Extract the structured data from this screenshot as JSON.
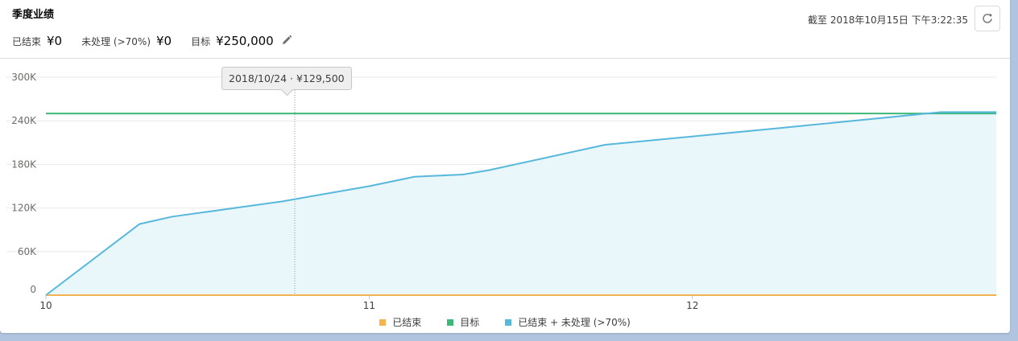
{
  "header": {
    "title": "季度业绩",
    "closed_label": "已结束",
    "closed_value": "¥0",
    "open_label": "未处理 (>70%)",
    "open_value": "¥0",
    "goal_label": "目标",
    "goal_value": "¥250,000",
    "asof": "截至 2018年10月15日 下午3:22:35",
    "edit_icon": "pencil-icon",
    "refresh_icon": "refresh-icon"
  },
  "tooltip": {
    "text": "2018/10/24 · ¥129,500"
  },
  "colors": {
    "closed": "#f4b350",
    "goal": "#3cb878",
    "closed_open": "#57b8dc",
    "area_fill": "#e9f6fa",
    "grid": "#e8e8e8",
    "axis_text": "#706e6b"
  },
  "chart_data": {
    "type": "line",
    "x_range": [
      10,
      12.94
    ],
    "ylim": [
      0,
      300000
    ],
    "y_ticks": [
      0,
      60000,
      120000,
      180000,
      240000,
      300000
    ],
    "y_tick_labels": [
      "0",
      "60K",
      "120K",
      "180K",
      "240K",
      "300K"
    ],
    "x_ticks": [
      10,
      11,
      12
    ],
    "x_tick_labels": [
      "10",
      "11",
      "12"
    ],
    "grid": true,
    "legend_position": "bottom",
    "hover_x": 10.77,
    "series": [
      {
        "name": "已结束",
        "color": "#f4b350",
        "x": [
          10,
          12.94
        ],
        "y": [
          0,
          0
        ]
      },
      {
        "name": "目标",
        "color": "#3cb878",
        "x": [
          10,
          12.94
        ],
        "y": [
          250000,
          250000
        ]
      },
      {
        "name": "已结束 + 未处理 (>70%)",
        "color": "#57b8dc",
        "area": true,
        "x": [
          10,
          10.29,
          10.39,
          10.73,
          11.0,
          11.14,
          11.29,
          11.37,
          11.73,
          12.27,
          12.77,
          12.94
        ],
        "y": [
          0,
          98000,
          108000,
          129000,
          150000,
          163000,
          166000,
          172000,
          207000,
          230000,
          252000,
          252000
        ]
      }
    ]
  }
}
